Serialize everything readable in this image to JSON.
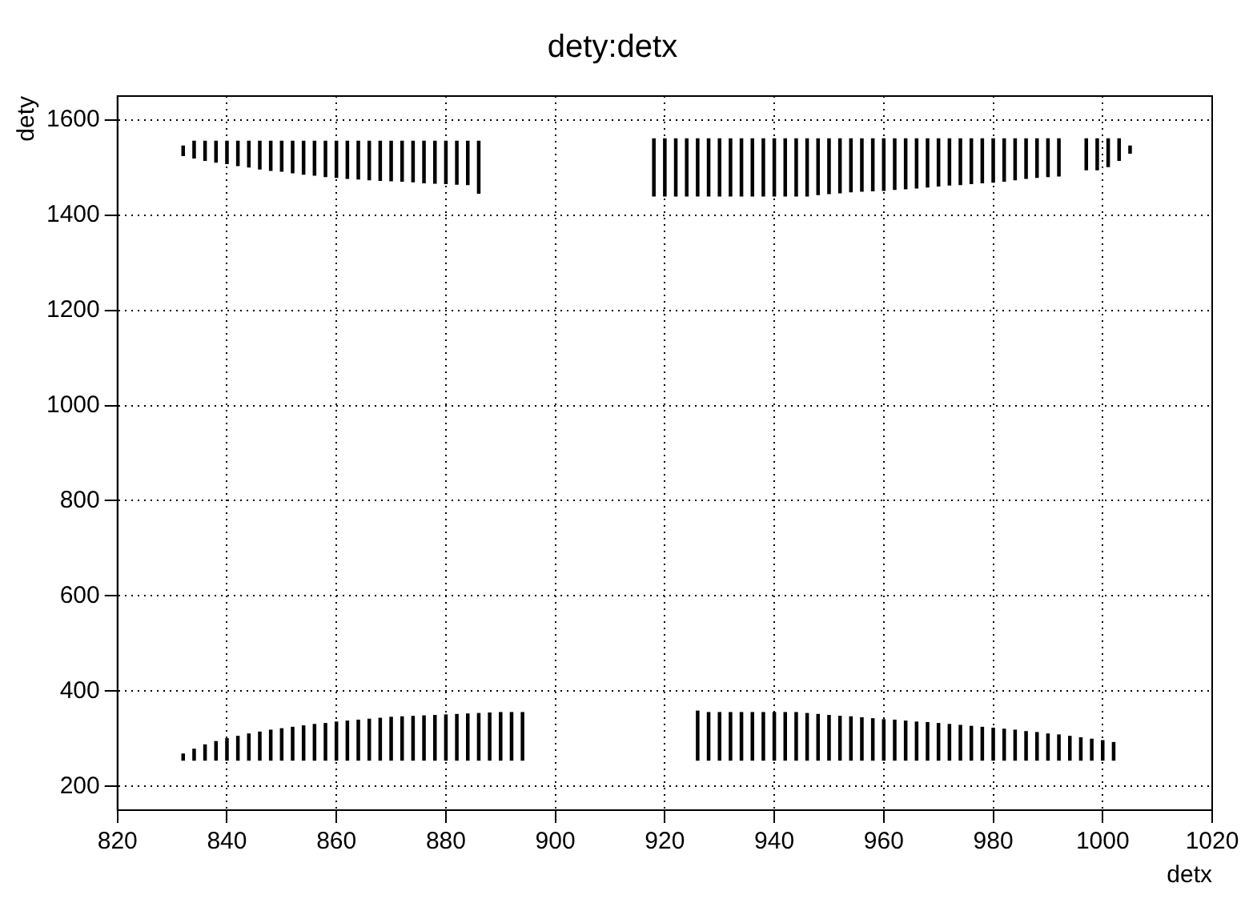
{
  "chart_data": {
    "type": "bar",
    "title": "dety:detx",
    "xlabel": "detx",
    "ylabel": "dety",
    "series": [
      {
        "color": "#000000",
        "x": [
          832,
          834,
          836,
          838,
          840,
          842,
          844,
          846,
          848,
          850,
          852,
          854,
          856,
          858,
          860,
          862,
          864,
          866,
          868,
          870,
          872,
          874,
          876,
          878,
          880,
          882,
          884,
          886
        ],
        "values": [
          20,
          35,
          40,
          44,
          47,
          51,
          54,
          58,
          61,
          63,
          66,
          69,
          71,
          74,
          76,
          78,
          79,
          81,
          82,
          83,
          84,
          85,
          87,
          88,
          89,
          90,
          91,
          109
        ],
        "base": [
          1525,
          1520,
          1515,
          1511,
          1508,
          1504,
          1501,
          1497,
          1494,
          1492,
          1489,
          1486,
          1484,
          1481,
          1479,
          1477,
          1476,
          1474,
          1473,
          1472,
          1471,
          1470,
          1468,
          1467,
          1466,
          1465,
          1464,
          1446
        ]
      },
      {
        "color": "#000000",
        "x": [
          832,
          834,
          836,
          838,
          840,
          842,
          844,
          846,
          848,
          850,
          852,
          854,
          856,
          858,
          860,
          862,
          864,
          866,
          868,
          870,
          872,
          874,
          876,
          878,
          880,
          882,
          884,
          886,
          888,
          890,
          892,
          894
        ],
        "values": [
          13,
          23,
          32,
          39,
          45,
          50,
          55,
          59,
          63,
          66,
          69,
          72,
          75,
          77,
          80,
          82,
          84,
          86,
          88,
          90,
          91,
          92,
          93,
          94,
          95,
          96,
          97,
          98,
          99,
          100,
          100,
          100
        ],
        "base": [
          255,
          255,
          255,
          255,
          255,
          255,
          255,
          255,
          255,
          255,
          255,
          255,
          255,
          255,
          255,
          255,
          255,
          255,
          255,
          255,
          255,
          255,
          255,
          255,
          255,
          255,
          255,
          255,
          255,
          255,
          255,
          255
        ]
      },
      {
        "color": "#000000",
        "x": [
          918,
          920,
          922,
          924,
          926,
          928,
          930,
          932,
          934,
          936,
          938,
          940,
          942,
          944,
          946,
          948,
          950,
          952,
          954,
          956,
          958,
          960,
          962,
          964,
          966,
          968,
          970,
          972,
          974,
          976,
          978,
          980,
          982,
          984,
          986,
          988,
          990,
          992,
          997,
          999,
          1001,
          1003,
          1005
        ],
        "values": [
          120,
          120,
          120,
          120,
          120,
          120,
          120,
          120,
          120,
          120,
          120,
          120,
          120,
          120,
          120,
          117,
          115,
          113,
          111,
          110,
          109,
          108,
          106,
          105,
          103,
          101,
          99,
          97,
          96,
          94,
          92,
          91,
          89,
          86,
          83,
          81,
          79,
          78,
          65,
          65,
          58,
          45,
          15
        ],
        "base": [
          1440,
          1440,
          1440,
          1440,
          1440,
          1440,
          1440,
          1440,
          1440,
          1440,
          1440,
          1440,
          1440,
          1440,
          1440,
          1443,
          1445,
          1447,
          1449,
          1450,
          1451,
          1452,
          1454,
          1455,
          1457,
          1459,
          1461,
          1463,
          1464,
          1466,
          1468,
          1469,
          1471,
          1474,
          1477,
          1479,
          1481,
          1482,
          1495,
          1495,
          1502,
          1515,
          1530
        ]
      },
      {
        "color": "#000000",
        "x": [
          926,
          928,
          930,
          932,
          934,
          936,
          938,
          940,
          942,
          944,
          946,
          948,
          950,
          952,
          954,
          956,
          958,
          960,
          962,
          964,
          966,
          968,
          970,
          972,
          974,
          976,
          978,
          980,
          982,
          984,
          986,
          988,
          990,
          992,
          994,
          996,
          998,
          1000,
          1002
        ],
        "values": [
          103,
          100,
          100,
          100,
          100,
          100,
          100,
          100,
          100,
          100,
          98,
          96,
          94,
          92,
          91,
          89,
          87,
          85,
          84,
          82,
          80,
          79,
          77,
          75,
          73,
          71,
          69,
          67,
          65,
          63,
          60,
          58,
          55,
          53,
          50,
          47,
          44,
          41,
          37
        ],
        "base": [
          255,
          255,
          255,
          255,
          255,
          255,
          255,
          255,
          255,
          255,
          255,
          255,
          255,
          255,
          255,
          255,
          255,
          255,
          255,
          255,
          255,
          255,
          255,
          255,
          255,
          255,
          255,
          255,
          255,
          255,
          255,
          255,
          255,
          255,
          255,
          255,
          255,
          255,
          255
        ]
      }
    ],
    "xlim": [
      820,
      1020
    ],
    "xticks": [
      820,
      840,
      860,
      880,
      900,
      920,
      940,
      960,
      980,
      1000,
      1020
    ],
    "ylim": [
      150,
      1650
    ],
    "yticks": [
      200,
      400,
      600,
      800,
      1000,
      1200,
      1400,
      1600
    ],
    "grid": true,
    "legend": false
  }
}
